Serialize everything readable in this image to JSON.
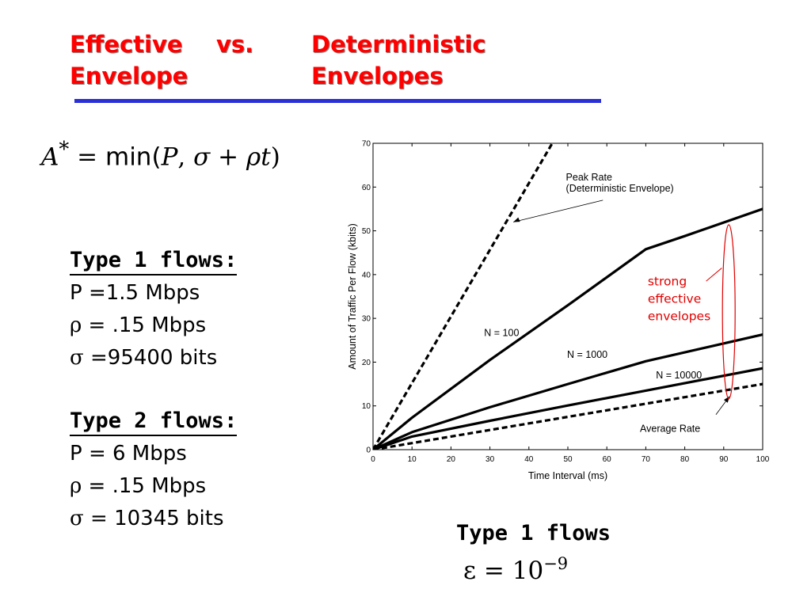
{
  "slide": {
    "title_left_line1_a": "Effective",
    "title_left_line1_b": "vs.",
    "title_left_line2": "Envelope",
    "title_right_line1": "Deterministic",
    "title_right_line2": "Envelopes",
    "accent_color": "#2b2fd6",
    "title_color": "#ff0000"
  },
  "formula": {
    "lhs": "A",
    "star": "*",
    "eq": " = ",
    "fn": "min(",
    "p": "P",
    "sep": ", ",
    "sigma": "σ",
    "plus": " + ",
    "rho": "ρ",
    "t": "t",
    "close": ")"
  },
  "type1": {
    "heading": "Type 1 flows:",
    "p_line": "P =1.5 Mbps",
    "rho_sym": "ρ",
    "rho_rest": " = .15 Mbps",
    "sigma_sym": "σ",
    "sigma_rest": " =95400 bits"
  },
  "type2": {
    "heading": "Type 2 flows:",
    "p_line": "P = 6 Mbps",
    "rho_sym": "ρ",
    "rho_rest": " = .15 Mbps",
    "sigma_sym": "σ",
    "sigma_rest": " = 10345 bits"
  },
  "caption": {
    "label": "Type 1 flows",
    "eps_lhs": "ε = 10",
    "eps_exp": "−9"
  },
  "chart_data": {
    "type": "line",
    "xlabel": "Time Interval (ms)",
    "ylabel": "Amount of Traffic Per Flow (kbits)",
    "xlim": [
      0,
      100
    ],
    "ylim": [
      0,
      70
    ],
    "xticks": [
      0,
      10,
      20,
      30,
      40,
      50,
      60,
      70,
      80,
      90,
      100
    ],
    "yticks": [
      0,
      10,
      20,
      30,
      40,
      50,
      60,
      70
    ],
    "grid": false,
    "series": [
      {
        "style": "dashed",
        "x": [
          0,
          46
        ],
        "y": [
          0,
          70
        ]
      },
      {
        "name": "N = 100",
        "style": "solid",
        "x": [
          0,
          10,
          30,
          50,
          70,
          80,
          100
        ],
        "y": [
          0,
          7.3,
          20.5,
          33,
          45.8,
          48.8,
          55
        ]
      },
      {
        "name": "N = 1000",
        "style": "solid",
        "x": [
          0,
          10,
          30,
          50,
          70,
          100
        ],
        "y": [
          0,
          4,
          9.7,
          15,
          20.2,
          26.3
        ]
      },
      {
        "name": "N = 10000",
        "style": "solid",
        "x": [
          0,
          10,
          30,
          50,
          70,
          100
        ],
        "y": [
          0,
          3,
          6.6,
          10.1,
          13.5,
          18.6
        ]
      },
      {
        "style": "dashed",
        "x": [
          0,
          100
        ],
        "y": [
          0,
          15
        ]
      }
    ],
    "annotations": [
      {
        "text_lines": [
          "Peak Rate",
          "(Deterministic Envelope)"
        ]
      },
      {
        "text_lines": [
          "Average Rate"
        ]
      },
      {
        "text_lines": [
          "strong",
          "effective",
          "envelopes"
        ],
        "color": "#e00000"
      }
    ]
  }
}
